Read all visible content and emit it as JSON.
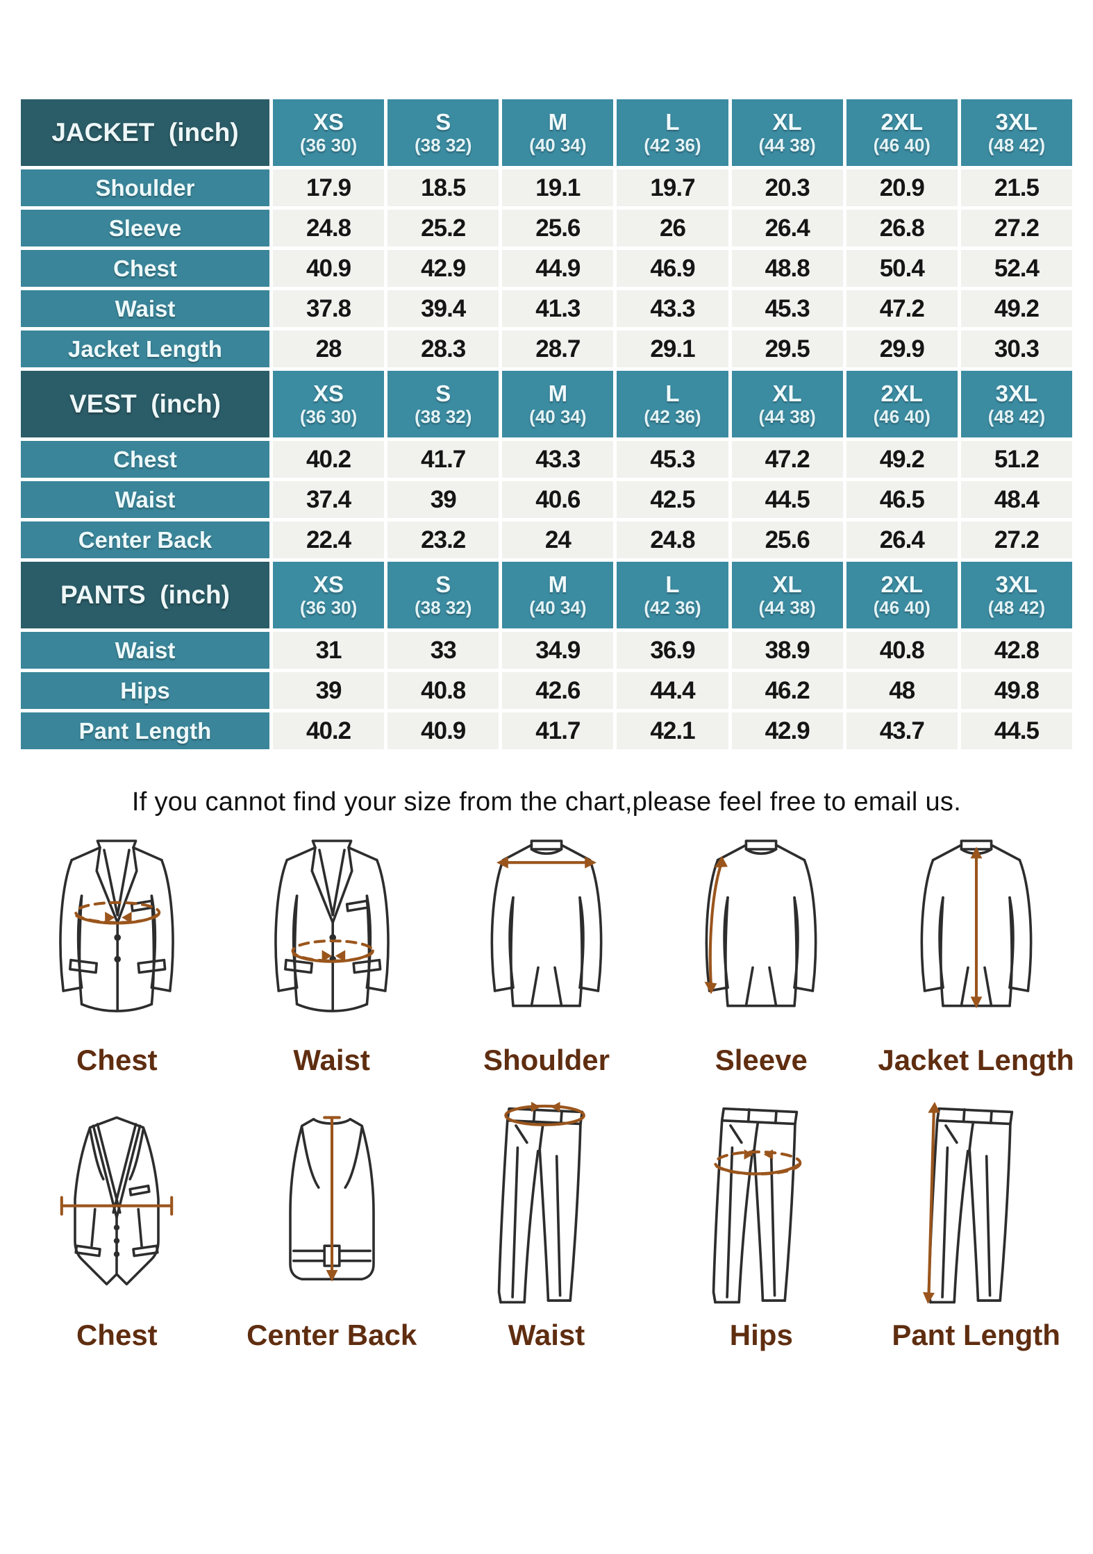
{
  "table": {
    "size_headers": [
      {
        "name": "XS",
        "range": "(36 30)"
      },
      {
        "name": "S",
        "range": "(38 32)"
      },
      {
        "name": "M",
        "range": "(40 34)"
      },
      {
        "name": "L",
        "range": "(42 36)"
      },
      {
        "name": "XL",
        "range": "(44 38)"
      },
      {
        "name": "2XL",
        "range": "(46 40)"
      },
      {
        "name": "3XL",
        "range": "(48 42)"
      }
    ],
    "sections": [
      {
        "title": "JACKET  (inch)",
        "rows": [
          {
            "label": "Shoulder",
            "values": [
              "17.9",
              "18.5",
              "19.1",
              "19.7",
              "20.3",
              "20.9",
              "21.5"
            ]
          },
          {
            "label": "Sleeve",
            "values": [
              "24.8",
              "25.2",
              "25.6",
              "26",
              "26.4",
              "26.8",
              "27.2"
            ]
          },
          {
            "label": "Chest",
            "values": [
              "40.9",
              "42.9",
              "44.9",
              "46.9",
              "48.8",
              "50.4",
              "52.4"
            ]
          },
          {
            "label": "Waist",
            "values": [
              "37.8",
              "39.4",
              "41.3",
              "43.3",
              "45.3",
              "47.2",
              "49.2"
            ]
          },
          {
            "label": "Jacket Length",
            "values": [
              "28",
              "28.3",
              "28.7",
              "29.1",
              "29.5",
              "29.9",
              "30.3"
            ]
          }
        ]
      },
      {
        "title": "VEST  (inch)",
        "rows": [
          {
            "label": "Chest",
            "values": [
              "40.2",
              "41.7",
              "43.3",
              "45.3",
              "47.2",
              "49.2",
              "51.2"
            ]
          },
          {
            "label": "Waist",
            "values": [
              "37.4",
              "39",
              "40.6",
              "42.5",
              "44.5",
              "46.5",
              "48.4"
            ]
          },
          {
            "label": "Center Back",
            "values": [
              "22.4",
              "23.2",
              "24",
              "24.8",
              "25.6",
              "26.4",
              "27.2"
            ]
          }
        ]
      },
      {
        "title": "PANTS  (inch)",
        "rows": [
          {
            "label": "Waist",
            "values": [
              "31",
              "33",
              "34.9",
              "36.9",
              "38.9",
              "40.8",
              "42.8"
            ]
          },
          {
            "label": "Hips",
            "values": [
              "39",
              "40.8",
              "42.6",
              "44.4",
              "46.2",
              "48",
              "49.8"
            ]
          },
          {
            "label": "Pant Length",
            "values": [
              "40.2",
              "40.9",
              "41.7",
              "42.1",
              "42.9",
              "43.7",
              "44.5"
            ]
          }
        ]
      }
    ]
  },
  "note": "If you cannot find your size from the chart,please feel free to email us.",
  "diagrams": {
    "row1": [
      {
        "label": "Chest"
      },
      {
        "label": "Waist"
      },
      {
        "label": "Shoulder"
      },
      {
        "label": "Sleeve"
      },
      {
        "label": "Jacket Length"
      }
    ],
    "row2": [
      {
        "label": "Chest"
      },
      {
        "label": "Center Back"
      },
      {
        "label": "Waist"
      },
      {
        "label": "Hips"
      },
      {
        "label": "Pant Length"
      }
    ]
  },
  "colors": {
    "header_dark": "#2b5d68",
    "header_teal": "#3b8ba1",
    "label_teal": "#3a8599",
    "cell_bg": "#f1f1ee",
    "label_brown": "#5f2d10",
    "arrow_brown": "#9a551c"
  }
}
